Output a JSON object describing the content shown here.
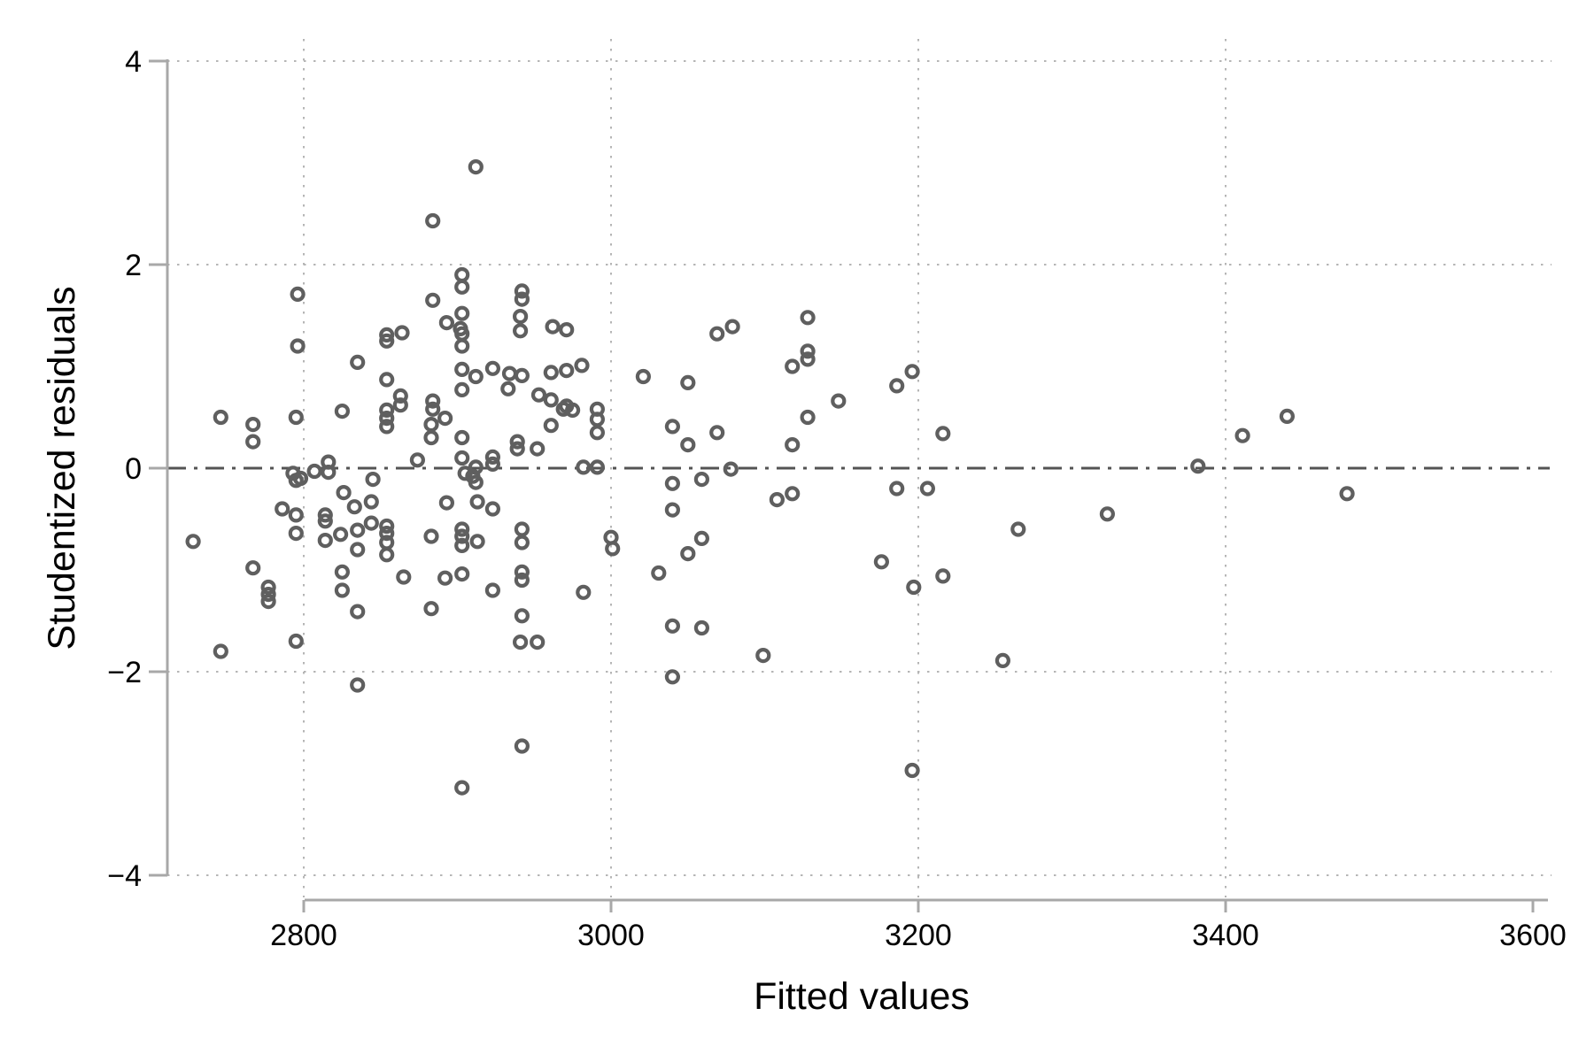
{
  "chart_data": {
    "type": "scatter",
    "title": "",
    "xlabel": "Fitted values",
    "ylabel": "Studentized residuals",
    "xlim": [
      2710,
      3610
    ],
    "ylim": [
      -4,
      4
    ],
    "x_ticks": {
      "values": [
        2800,
        3000,
        3200,
        3400,
        3600
      ],
      "labels": [
        "2800",
        "3000",
        "3200",
        "3400",
        "3600"
      ]
    },
    "y_ticks": {
      "values": [
        4,
        2,
        0,
        -2,
        -4
      ],
      "labels": [
        "4",
        "2",
        "0",
        "−2",
        "−4"
      ]
    },
    "grid": {
      "vertical_at": [
        2800,
        3000,
        3200,
        3400
      ],
      "horizontal_at": [
        4,
        2,
        -2,
        -4
      ],
      "style": "dotted",
      "on": true
    },
    "reference_line": {
      "y": 0,
      "style": "dash-dot"
    },
    "legend_position": "none",
    "marker": {
      "shape": "hollow-circle",
      "color": "#5f5f5f",
      "radius_px": 6.5,
      "stroke_px": 4.2
    },
    "colors": {
      "axis": "#a8a8a8",
      "grid": "#b5b5b5",
      "zero_line": "#545454",
      "text": "#000000",
      "background": "#ffffff"
    },
    "points": [
      [
        2912,
        2.96
      ],
      [
        2884,
        2.43
      ],
      [
        2796,
        1.71
      ],
      [
        2796,
        1.2
      ],
      [
        2903,
        1.9
      ],
      [
        2903,
        1.78
      ],
      [
        2884,
        1.65
      ],
      [
        2903,
        1.52
      ],
      [
        2893,
        1.43
      ],
      [
        2902,
        1.37
      ],
      [
        2903,
        1.32
      ],
      [
        2903,
        1.2
      ],
      [
        2854,
        1.31
      ],
      [
        2854,
        1.25
      ],
      [
        2864,
        1.33
      ],
      [
        2835,
        1.04
      ],
      [
        2854,
        0.87
      ],
      [
        2903,
        0.97
      ],
      [
        2912,
        0.9
      ],
      [
        2923,
        0.98
      ],
      [
        2934,
        0.93
      ],
      [
        2933,
        0.78
      ],
      [
        2903,
        0.77
      ],
      [
        2863,
        0.71
      ],
      [
        2863,
        0.62
      ],
      [
        2884,
        0.66
      ],
      [
        2884,
        0.58
      ],
      [
        2825,
        0.56
      ],
      [
        2942,
        1.74
      ],
      [
        2942,
        1.66
      ],
      [
        2941,
        1.49
      ],
      [
        2941,
        1.35
      ],
      [
        2962,
        1.39
      ],
      [
        2971,
        1.36
      ],
      [
        2942,
        0.91
      ],
      [
        2961,
        0.94
      ],
      [
        2971,
        0.96
      ],
      [
        2981,
        1.01
      ],
      [
        2953,
        0.72
      ],
      [
        2961,
        0.67
      ],
      [
        2971,
        0.61
      ],
      [
        3021,
        0.9
      ],
      [
        3050,
        0.84
      ],
      [
        3069,
        1.32
      ],
      [
        3079,
        1.39
      ],
      [
        3128,
        1.48
      ],
      [
        3128,
        1.15
      ],
      [
        3128,
        1.07
      ],
      [
        3118,
        1.0
      ],
      [
        3148,
        0.66
      ],
      [
        3186,
        0.81
      ],
      [
        3196,
        0.95
      ],
      [
        3411,
        0.32
      ],
      [
        3440,
        0.51
      ],
      [
        3479,
        -0.25
      ],
      [
        3382,
        0.02
      ],
      [
        2746,
        0.5
      ],
      [
        2767,
        0.43
      ],
      [
        2767,
        0.26
      ],
      [
        2795,
        0.5
      ],
      [
        2854,
        0.57
      ],
      [
        2854,
        0.49
      ],
      [
        2854,
        0.41
      ],
      [
        2883,
        0.43
      ],
      [
        2883,
        0.3
      ],
      [
        2892,
        0.49
      ],
      [
        2903,
        0.3
      ],
      [
        2874,
        0.08
      ],
      [
        2903,
        0.1
      ],
      [
        2923,
        0.11
      ],
      [
        2923,
        0.04
      ],
      [
        2912,
        0.01
      ],
      [
        2905,
        -0.05
      ],
      [
        2910,
        -0.08
      ],
      [
        2912,
        -0.14
      ],
      [
        2793,
        -0.05
      ],
      [
        2798,
        -0.1
      ],
      [
        2795,
        -0.12
      ],
      [
        2807,
        -0.03
      ],
      [
        2816,
        0.06
      ],
      [
        2816,
        -0.04
      ],
      [
        2845,
        -0.11
      ],
      [
        2826,
        -0.24
      ],
      [
        2833,
        -0.38
      ],
      [
        2844,
        -0.33
      ],
      [
        2814,
        -0.46
      ],
      [
        2814,
        -0.52
      ],
      [
        2786,
        -0.4
      ],
      [
        2795,
        -0.46
      ],
      [
        2795,
        -0.64
      ],
      [
        2728,
        -0.72
      ],
      [
        2814,
        -0.71
      ],
      [
        2824,
        -0.65
      ],
      [
        2835,
        -0.61
      ],
      [
        2844,
        -0.54
      ],
      [
        2854,
        -0.57
      ],
      [
        2854,
        -0.64
      ],
      [
        2854,
        -0.73
      ],
      [
        2854,
        -0.85
      ],
      [
        2835,
        -0.8
      ],
      [
        2767,
        -0.98
      ],
      [
        2777,
        -1.17
      ],
      [
        2777,
        -1.24
      ],
      [
        2777,
        -1.31
      ],
      [
        2825,
        -1.02
      ],
      [
        2825,
        -1.2
      ],
      [
        2865,
        -1.07
      ],
      [
        2892,
        -1.08
      ],
      [
        2903,
        -1.04
      ],
      [
        2883,
        -1.38
      ],
      [
        2835,
        -1.41
      ],
      [
        2923,
        -1.2
      ],
      [
        2795,
        -1.7
      ],
      [
        2746,
        -1.8
      ],
      [
        2903,
        -0.6
      ],
      [
        2903,
        -0.67
      ],
      [
        2903,
        -0.76
      ],
      [
        2913,
        -0.72
      ],
      [
        2883,
        -0.67
      ],
      [
        2893,
        -0.34
      ],
      [
        2913,
        -0.33
      ],
      [
        2923,
        -0.4
      ],
      [
        2939,
        0.26
      ],
      [
        2939,
        0.19
      ],
      [
        2952,
        0.19
      ],
      [
        2969,
        0.58
      ],
      [
        2975,
        0.57
      ],
      [
        2961,
        0.42
      ],
      [
        2991,
        0.58
      ],
      [
        2991,
        0.48
      ],
      [
        2991,
        0.35
      ],
      [
        2982,
        0.01
      ],
      [
        2991,
        0.01
      ],
      [
        3040,
        0.41
      ],
      [
        3050,
        0.23
      ],
      [
        3069,
        0.35
      ],
      [
        3078,
        -0.01
      ],
      [
        3059,
        -0.11
      ],
      [
        3040,
        -0.15
      ],
      [
        3040,
        -0.41
      ],
      [
        3118,
        0.23
      ],
      [
        3128,
        0.5
      ],
      [
        3108,
        -0.31
      ],
      [
        3118,
        -0.25
      ],
      [
        3059,
        -0.69
      ],
      [
        3050,
        -0.84
      ],
      [
        3031,
        -1.03
      ],
      [
        3000,
        -0.68
      ],
      [
        3001,
        -0.79
      ],
      [
        2982,
        -1.22
      ],
      [
        2942,
        -0.6
      ],
      [
        2942,
        -0.73
      ],
      [
        2942,
        -1.02
      ],
      [
        2942,
        -1.1
      ],
      [
        2942,
        -1.45
      ],
      [
        2941,
        -1.71
      ],
      [
        2952,
        -1.71
      ],
      [
        3040,
        -1.55
      ],
      [
        3059,
        -1.57
      ],
      [
        3099,
        -1.84
      ],
      [
        3040,
        -2.05
      ],
      [
        3216,
        0.34
      ],
      [
        3186,
        -0.2
      ],
      [
        3206,
        -0.2
      ],
      [
        3323,
        -0.45
      ],
      [
        3265,
        -0.6
      ],
      [
        3176,
        -0.92
      ],
      [
        3216,
        -1.06
      ],
      [
        3197,
        -1.17
      ],
      [
        3255,
        -1.89
      ],
      [
        2835,
        -2.13
      ],
      [
        2903,
        -3.14
      ],
      [
        2942,
        -2.73
      ],
      [
        3196,
        -2.97
      ]
    ]
  }
}
